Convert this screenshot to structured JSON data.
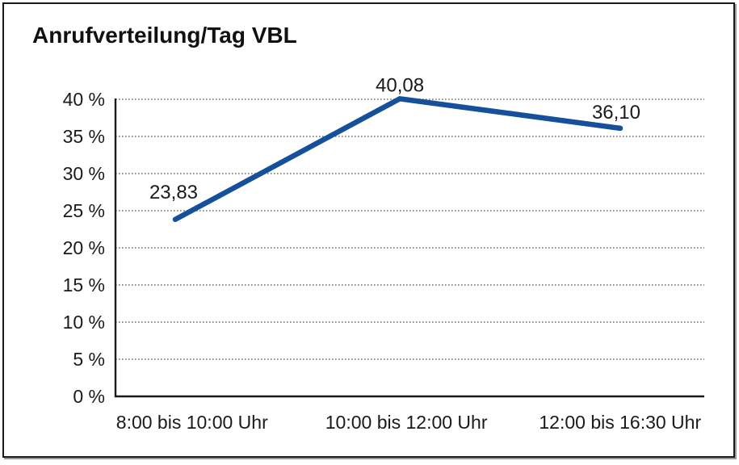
{
  "chart_data": {
    "type": "line",
    "title": "Anrufverteilung/Tag VBL",
    "categories": [
      "8:00 bis 10:00 Uhr",
      "10:00 bis 12:00 Uhr",
      "12:00 bis 16:30 Uhr"
    ],
    "values": [
      23.83,
      40.08,
      36.1
    ],
    "data_labels": [
      "23,83",
      "40,08",
      "36,10"
    ],
    "y_tick_values": [
      0,
      5,
      10,
      15,
      20,
      25,
      30,
      35,
      40
    ],
    "y_tick_labels": [
      "0 %",
      "5 %",
      "10 %",
      "15 %",
      "20 %",
      "25 %",
      "30 %",
      "35 %",
      "40 %"
    ],
    "ylim": [
      0,
      40
    ],
    "xlabel": "",
    "ylabel": "",
    "legend": "none",
    "grid": "horizontal-dotted",
    "line_color": "#164f9a",
    "axis_color": "#1a1a1a",
    "gridline_color": "#6e6e6e",
    "text_color": "#1a1a1a",
    "frame_color": "#1a1a1a"
  }
}
